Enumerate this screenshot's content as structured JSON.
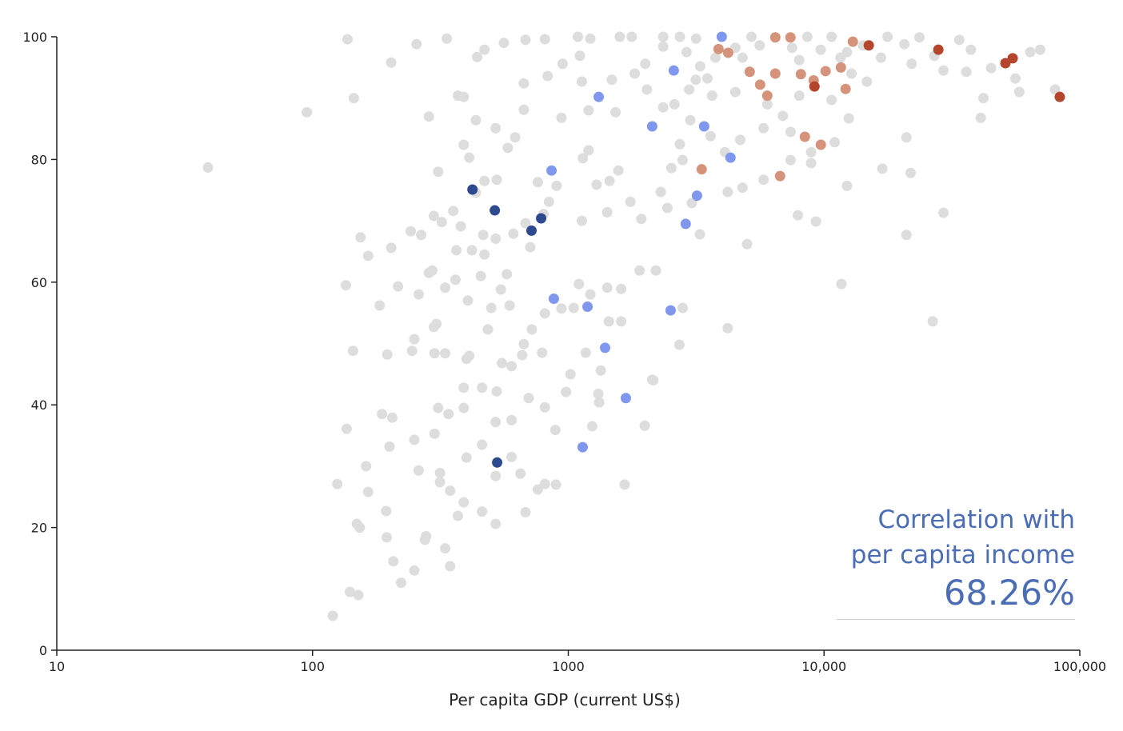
{
  "chart_data": {
    "type": "scatter",
    "title": "",
    "xlabel": "Per capita GDP (current US$)",
    "ylabel": "",
    "xscale": "log",
    "xlim": [
      10,
      100000
    ],
    "ylim": [
      0,
      100
    ],
    "grid": false,
    "x_ticks": [
      {
        "value": 10,
        "label": "10"
      },
      {
        "value": 100,
        "label": "100"
      },
      {
        "value": 1000,
        "label": "1000"
      },
      {
        "value": 10000,
        "label": "10,000"
      },
      {
        "value": 100000,
        "label": "100,000"
      }
    ],
    "y_ticks": [
      {
        "value": 0,
        "label": "0"
      },
      {
        "value": 20,
        "label": "20"
      },
      {
        "value": 40,
        "label": "40"
      },
      {
        "value": 60,
        "label": "60"
      },
      {
        "value": 80,
        "label": "80"
      },
      {
        "value": 100,
        "label": "100"
      }
    ],
    "series": [
      {
        "color": "#dddddd",
        "points": [
          [
            39,
            78.7
          ],
          [
            95,
            87.7
          ],
          [
            137,
            99.6
          ],
          [
            145,
            90
          ],
          [
            203,
            95.8
          ],
          [
            255,
            98.8
          ],
          [
            335,
            99.7
          ],
          [
            440,
            96.7
          ],
          [
            470,
            97.9
          ],
          [
            560,
            99
          ],
          [
            680,
            99.5
          ],
          [
            810,
            99.6
          ],
          [
            1090,
            100
          ],
          [
            1220,
            99.7
          ],
          [
            1590,
            100
          ],
          [
            1770,
            100
          ],
          [
            2350,
            100
          ],
          [
            2730,
            100
          ],
          [
            3160,
            99.7
          ],
          [
            5200,
            100
          ],
          [
            8600,
            100
          ],
          [
            10700,
            100
          ],
          [
            17700,
            100
          ],
          [
            23600,
            99.9
          ],
          [
            33800,
            99.5
          ],
          [
            64000,
            97.5
          ],
          [
            80000,
            91.4
          ],
          [
            42000,
            90
          ],
          [
            41000,
            86.8
          ],
          [
            21000,
            83.6
          ],
          [
            21800,
            77.8
          ],
          [
            16900,
            78.5
          ],
          [
            29300,
            71.3
          ],
          [
            21000,
            67.7
          ],
          [
            26600,
            53.6
          ],
          [
            11700,
            59.7
          ],
          [
            9300,
            69.9
          ],
          [
            7900,
            70.9
          ],
          [
            5000,
            66.2
          ],
          [
            4200,
            52.5
          ],
          [
            2800,
            55.8
          ],
          [
            2720,
            49.8
          ],
          [
            2130,
            44.1
          ],
          [
            1990,
            36.6
          ],
          [
            1660,
            27
          ],
          [
            1340,
            45.6
          ],
          [
            1310,
            41.8
          ],
          [
            1240,
            36.5
          ],
          [
            980,
            42.1
          ],
          [
            890,
            35.9
          ],
          [
            810,
            27.1
          ],
          [
            895,
            27
          ],
          [
            760,
            26.2
          ],
          [
            680,
            22.5
          ],
          [
            650,
            28.8
          ],
          [
            600,
            31.5
          ],
          [
            520,
            28.4
          ],
          [
            520,
            20.6
          ],
          [
            460,
            22.6
          ],
          [
            460,
            33.5
          ],
          [
            400,
            31.4
          ],
          [
            390,
            39.5
          ],
          [
            340,
            38.5
          ],
          [
            310,
            39.5
          ],
          [
            300,
            35.3
          ],
          [
            260,
            29.3
          ],
          [
            250,
            34.3
          ],
          [
            205,
            37.9
          ],
          [
            187,
            38.5
          ],
          [
            200,
            33.2
          ],
          [
            162,
            30
          ],
          [
            165,
            25.8
          ],
          [
            136,
            36.1
          ],
          [
            125,
            27.1
          ],
          [
            149,
            20.6
          ],
          [
            153,
            20
          ],
          [
            194,
            22.7
          ],
          [
            195,
            18.4
          ],
          [
            207,
            14.5
          ],
          [
            250,
            13
          ],
          [
            222,
            11
          ],
          [
            330,
            16.6
          ],
          [
            345,
            13.7
          ],
          [
            278,
            18.6
          ],
          [
            275,
            18
          ],
          [
            315,
            28.9
          ],
          [
            315,
            27.4
          ],
          [
            345,
            26
          ],
          [
            390,
            24.1
          ],
          [
            370,
            21.9
          ],
          [
            140,
            9.5
          ],
          [
            151,
            9
          ],
          [
            120,
            5.6
          ],
          [
            144,
            48.8
          ],
          [
            196,
            48.2
          ],
          [
            245,
            48.8
          ],
          [
            300,
            48.4
          ],
          [
            330,
            48.4
          ],
          [
            250,
            50.7
          ],
          [
            298,
            52.7
          ],
          [
            305,
            53.2
          ],
          [
            400,
            47.5
          ],
          [
            183,
            56.2
          ],
          [
            216,
            59.3
          ],
          [
            260,
            58
          ],
          [
            285,
            61.5
          ],
          [
            294,
            61.9
          ],
          [
            330,
            59.1
          ],
          [
            362,
            60.4
          ],
          [
            405,
            57
          ],
          [
            455,
            61
          ],
          [
            500,
            55.8
          ],
          [
            545,
            58.8
          ],
          [
            575,
            61.3
          ],
          [
            710,
            65.7
          ],
          [
            135,
            59.5
          ],
          [
            165,
            64.3
          ],
          [
            154,
            67.3
          ],
          [
            203,
            65.6
          ],
          [
            242,
            68.3
          ],
          [
            266,
            67.7
          ],
          [
            298,
            70.8
          ],
          [
            320,
            69.8
          ],
          [
            355,
            71.6
          ],
          [
            380,
            69.1
          ],
          [
            365,
            65.2
          ],
          [
            420,
            65.2
          ],
          [
            470,
            64.5
          ],
          [
            465,
            67.7
          ],
          [
            520,
            67.1
          ],
          [
            610,
            67.9
          ],
          [
            680,
            69.6
          ],
          [
            800,
            71.1
          ],
          [
            840,
            73.1
          ],
          [
            760,
            76.3
          ],
          [
            900,
            75.7
          ],
          [
            1140,
            80.2
          ],
          [
            1200,
            81.5
          ],
          [
            1290,
            75.9
          ],
          [
            1450,
            76.5
          ],
          [
            1570,
            78.2
          ],
          [
            1130,
            70
          ],
          [
            1420,
            71.4
          ],
          [
            1750,
            73.1
          ],
          [
            1930,
            70.3
          ],
          [
            2300,
            74.7
          ],
          [
            3040,
            72.9
          ],
          [
            3270,
            67.8
          ],
          [
            2200,
            61.9
          ],
          [
            1900,
            61.9
          ],
          [
            1610,
            58.9
          ],
          [
            1420,
            59.1
          ],
          [
            1440,
            53.6
          ],
          [
            1610,
            53.6
          ],
          [
            1220,
            58
          ],
          [
            1100,
            59.7
          ],
          [
            1050,
            55.8
          ],
          [
            940,
            55.7
          ],
          [
            810,
            54.9
          ],
          [
            720,
            52.3
          ],
          [
            670,
            49.9
          ],
          [
            790,
            48.5
          ],
          [
            660,
            48.1
          ],
          [
            600,
            46.3
          ],
          [
            550,
            46.8
          ],
          [
            525,
            42.2
          ],
          [
            460,
            42.8
          ],
          [
            390,
            42.8
          ],
          [
            410,
            48
          ],
          [
            485,
            52.3
          ],
          [
            590,
            56.2
          ],
          [
            520,
            37.2
          ],
          [
            600,
            37.5
          ],
          [
            700,
            41.1
          ],
          [
            810,
            39.6
          ],
          [
            1020,
            45
          ],
          [
            1170,
            48.5
          ],
          [
            1320,
            40.4
          ],
          [
            2150,
            44
          ],
          [
            435,
            74.6
          ],
          [
            470,
            76.5
          ],
          [
            525,
            76.7
          ],
          [
            310,
            78
          ],
          [
            410,
            80.3
          ],
          [
            390,
            82.4
          ],
          [
            580,
            81.9
          ],
          [
            285,
            87
          ],
          [
            370,
            90.4
          ],
          [
            390,
            90.2
          ],
          [
            435,
            86.4
          ],
          [
            520,
            85.1
          ],
          [
            620,
            83.6
          ],
          [
            670,
            88.1
          ],
          [
            670,
            92.4
          ],
          [
            830,
            93.6
          ],
          [
            950,
            95.6
          ],
          [
            1110,
            96.9
          ],
          [
            1130,
            92.7
          ],
          [
            940,
            86.8
          ],
          [
            1200,
            88
          ],
          [
            1530,
            87.7
          ],
          [
            1480,
            93
          ],
          [
            1820,
            94
          ],
          [
            2000,
            95.6
          ],
          [
            2030,
            91.4
          ],
          [
            2350,
            88.5
          ],
          [
            2600,
            89
          ],
          [
            2970,
            91.4
          ],
          [
            3500,
            93.2
          ],
          [
            3280,
            95.2
          ],
          [
            3760,
            96.6
          ],
          [
            4800,
            96.6
          ],
          [
            5600,
            98.6
          ],
          [
            7500,
            98.2
          ],
          [
            9700,
            97.9
          ],
          [
            11600,
            96.6
          ],
          [
            16700,
            96.6
          ],
          [
            22000,
            95.6
          ],
          [
            29300,
            94.5
          ],
          [
            37500,
            97.9
          ],
          [
            56000,
            93.2
          ],
          [
            58000,
            91
          ],
          [
            14700,
            92.7
          ],
          [
            12800,
            94
          ],
          [
            12500,
            86.7
          ],
          [
            11000,
            82.8
          ],
          [
            8900,
            81.2
          ],
          [
            7400,
            84.5
          ],
          [
            6900,
            87.1
          ],
          [
            5800,
            85.1
          ],
          [
            4700,
            83.2
          ],
          [
            4100,
            81.2
          ],
          [
            3600,
            83.8
          ],
          [
            3000,
            86.4
          ],
          [
            2730,
            82.5
          ],
          [
            2530,
            78.6
          ],
          [
            2440,
            72.1
          ],
          [
            2800,
            79.9
          ],
          [
            4200,
            74.7
          ],
          [
            4800,
            75.4
          ],
          [
            5800,
            76.7
          ],
          [
            7400,
            79.9
          ],
          [
            8900,
            79.4
          ],
          [
            12300,
            75.7
          ],
          [
            14200,
            98.6
          ],
          [
            20600,
            98.8
          ],
          [
            27000,
            96.9
          ],
          [
            45000,
            94.9
          ],
          [
            70000,
            97.9
          ],
          [
            36000,
            94.3
          ],
          [
            6000,
            89
          ],
          [
            8000,
            90.4
          ],
          [
            10700,
            89.7
          ],
          [
            4500,
            91
          ],
          [
            3650,
            90.4
          ],
          [
            3150,
            93
          ],
          [
            2900,
            97.5
          ],
          [
            2350,
            98.4
          ],
          [
            4500,
            98.2
          ],
          [
            8000,
            96.2
          ],
          [
            12300,
            97.5
          ]
        ]
      },
      {
        "color": "#7f97ec",
        "points": [
          [
            3981,
            100
          ],
          [
            2585,
            94.5
          ],
          [
            1315,
            90.2
          ],
          [
            2128,
            85.4
          ],
          [
            3397,
            85.4
          ],
          [
            4307,
            80.3
          ],
          [
            860,
            78.2
          ],
          [
            3186,
            74.1
          ],
          [
            2878,
            69.5
          ],
          [
            878,
            57.3
          ],
          [
            1189,
            56.0
          ],
          [
            2512,
            55.4
          ],
          [
            1393,
            49.3
          ],
          [
            1679,
            41.1
          ],
          [
            1138,
            33.1
          ]
        ]
      },
      {
        "color": "#d4937a",
        "points": [
          [
            6447,
            99.9
          ],
          [
            7390,
            99.9
          ],
          [
            3868,
            98.0
          ],
          [
            4217,
            97.4
          ],
          [
            12960,
            99.2
          ],
          [
            5120,
            94.3
          ],
          [
            6447,
            94.0
          ],
          [
            5623,
            92.2
          ],
          [
            5998,
            90.4
          ],
          [
            8117,
            93.9
          ],
          [
            9106,
            92.9
          ],
          [
            10140,
            94.4
          ],
          [
            11640,
            95.0
          ],
          [
            12140,
            91.5
          ],
          [
            8414,
            83.7
          ],
          [
            9716,
            82.4
          ],
          [
            3323,
            78.4
          ],
          [
            6730,
            77.3
          ]
        ]
      },
      {
        "color": "#b5462e",
        "points": [
          [
            14960,
            98.6
          ],
          [
            27990,
            97.9
          ],
          [
            51180,
            95.7
          ],
          [
            54640,
            96.5
          ],
          [
            83500,
            90.2
          ],
          [
            9173,
            91.9
          ]
        ]
      },
      {
        "color": "#2e4a8f",
        "points": [
          [
            422,
            75.1
          ],
          [
            516,
            71.7
          ],
          [
            783,
            70.4
          ],
          [
            718,
            68.4
          ],
          [
            527,
            30.6
          ]
        ]
      }
    ],
    "annotation": {
      "line1": "Correlation with",
      "line2": "per capita income",
      "value": "68.26%"
    }
  }
}
